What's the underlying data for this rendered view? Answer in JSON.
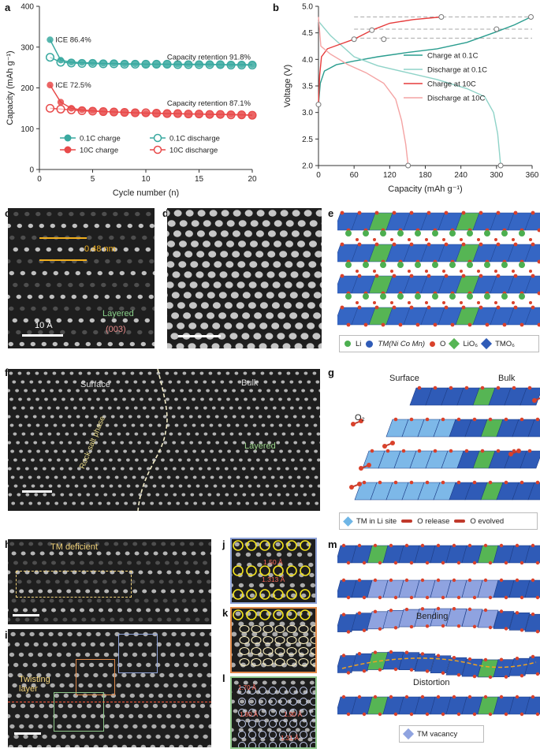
{
  "panels": {
    "a": "a",
    "b": "b",
    "c": "c",
    "d": "d",
    "e": "e",
    "f": "f",
    "g": "g",
    "h": "h",
    "i": "i",
    "j": "j",
    "k": "k",
    "l": "l",
    "m": "m"
  },
  "chart_data": [
    {
      "type": "scatter",
      "panel": "a",
      "xlabel": "Cycle number (n)",
      "ylabel": "Capacity (mAh g⁻¹)",
      "xlim": [
        0,
        20
      ],
      "ylim": [
        0,
        400
      ],
      "xticks": [
        0,
        5,
        10,
        15,
        20
      ],
      "yticks": [
        0,
        100,
        200,
        300,
        400
      ],
      "x": [
        1,
        2,
        3,
        4,
        5,
        6,
        7,
        8,
        9,
        10,
        11,
        12,
        13,
        14,
        15,
        16,
        17,
        18,
        19,
        20
      ],
      "series": [
        {
          "name": "0.1C charge",
          "color": "#3aa9a0",
          "filled": true,
          "values": [
            318,
            268,
            263,
            262,
            261,
            260,
            260,
            259,
            259,
            258,
            258,
            258,
            258,
            258,
            258,
            258,
            257,
            257,
            257,
            257
          ]
        },
        {
          "name": "0.1C discharge",
          "color": "#3aa9a0",
          "filled": false,
          "values": [
            275,
            263,
            261,
            260,
            260,
            259,
            259,
            258,
            258,
            258,
            258,
            258,
            257,
            257,
            257,
            257,
            257,
            256,
            256,
            256
          ]
        },
        {
          "name": "10C charge",
          "color": "#e84a4a",
          "filled": true,
          "values": [
            207,
            165,
            150,
            146,
            144,
            142,
            141,
            140,
            139,
            138,
            138,
            137,
            137,
            136,
            136,
            135,
            135,
            135,
            134,
            133
          ]
        },
        {
          "name": "10C discharge",
          "color": "#e84a4a",
          "filled": false,
          "values": [
            150,
            148,
            146,
            144,
            143,
            142,
            141,
            140,
            139,
            139,
            138,
            137,
            137,
            136,
            136,
            135,
            135,
            134,
            134,
            133
          ]
        }
      ],
      "annotations": [
        "ICE 86.4%",
        "Capacity retention 91.8%",
        "ICE 72.5%",
        "Capacity retention 87.1%"
      ]
    },
    {
      "type": "line",
      "panel": "b",
      "xlabel": "Capacity (mAh g⁻¹)",
      "ylabel": "Voltage (V)",
      "xlim": [
        0,
        360
      ],
      "ylim": [
        2.0,
        5.0
      ],
      "xticks": [
        0,
        60,
        120,
        180,
        240,
        300,
        360
      ],
      "yticks": [
        2.0,
        2.5,
        3.0,
        3.5,
        4.0,
        4.5,
        5.0
      ],
      "legend_position": "right",
      "series": [
        {
          "name": "Charge at 0.1C",
          "color": "#2a9d8f",
          "points": [
            [
              0,
              3.15
            ],
            [
              3,
              3.55
            ],
            [
              10,
              3.78
            ],
            [
              30,
              3.9
            ],
            [
              60,
              3.97
            ],
            [
              100,
              4.05
            ],
            [
              150,
              4.13
            ],
            [
              200,
              4.2
            ],
            [
              250,
              4.32
            ],
            [
              300,
              4.52
            ],
            [
              330,
              4.65
            ],
            [
              358,
              4.8
            ]
          ]
        },
        {
          "name": "Discharge at 0.1C",
          "color": "#8fd3c8",
          "points": [
            [
              0,
              4.72
            ],
            [
              20,
              4.45
            ],
            [
              60,
              4.05
            ],
            [
              100,
              3.88
            ],
            [
              150,
              3.75
            ],
            [
              200,
              3.62
            ],
            [
              250,
              3.45
            ],
            [
              280,
              3.3
            ],
            [
              295,
              3.0
            ],
            [
              302,
              2.6
            ],
            [
              307,
              2.0
            ]
          ]
        },
        {
          "name": "Charge at 10C",
          "color": "#e63b3b",
          "points": [
            [
              0,
              3.18
            ],
            [
              2,
              3.7
            ],
            [
              5,
              4.05
            ],
            [
              15,
              4.2
            ],
            [
              40,
              4.3
            ],
            [
              60,
              4.38
            ],
            [
              90,
              4.55
            ],
            [
              120,
              4.68
            ],
            [
              160,
              4.75
            ],
            [
              207,
              4.8
            ]
          ]
        },
        {
          "name": "Discharge at 10C",
          "color": "#f4a3a3",
          "points": [
            [
              0,
              4.8
            ],
            [
              4,
              4.25
            ],
            [
              20,
              4.1
            ],
            [
              50,
              3.9
            ],
            [
              80,
              3.75
            ],
            [
              110,
              3.55
            ],
            [
              130,
              3.25
            ],
            [
              140,
              2.85
            ],
            [
              147,
              2.4
            ],
            [
              151,
              2.0
            ]
          ]
        }
      ],
      "markers": [
        [
          0,
          3.15
        ],
        [
          60,
          4.38
        ],
        [
          90,
          4.55
        ],
        [
          110,
          4.38
        ],
        [
          207,
          4.8
        ],
        [
          307,
          2.0
        ],
        [
          151,
          2.0
        ],
        [
          300,
          4.57
        ],
        [
          358,
          4.8
        ]
      ]
    }
  ],
  "panel_c": {
    "spacing": "0.48 nm",
    "scale": "10 Å",
    "phase": "Layered",
    "plane": "(003)"
  },
  "panel_e": {
    "legend_li": "Li",
    "legend_tm": "TM(Ni Co Mn)",
    "legend_o": "O",
    "legend_lio6": "LiO₆",
    "legend_tmo6": "TMO₆"
  },
  "panel_f": {
    "surface": "Surface",
    "bulk": "Bulk",
    "rock": "Rock salt phase",
    "layered": "Layered"
  },
  "panel_g": {
    "surface": "Surface",
    "bulk": "Bulk",
    "o2": "O₂",
    "legend_tm_li": "TM in Li site",
    "legend_release": "O release",
    "legend_evolved": "O evolved"
  },
  "panel_h": {
    "tm_deficient": "TM deficient"
  },
  "panel_i": {
    "twisting": "Twisting layer"
  },
  "panel_j": {
    "d1": "1.50 Å",
    "d2": "1.313 Å"
  },
  "panel_l": {
    "d1": "1.70 Å",
    "d2": "1.80 Å",
    "d3": "1.90 Å",
    "d4": "1.31 Å"
  },
  "panel_m": {
    "bending": "Bending",
    "distortion": "Distortion",
    "legend_vac": "TM vacancy"
  },
  "colors": {
    "teal": "#3aa9a0",
    "red": "#e84a4a",
    "blue": "#2f5bb7",
    "green": "#4caf50",
    "orange": "#d9412b"
  }
}
